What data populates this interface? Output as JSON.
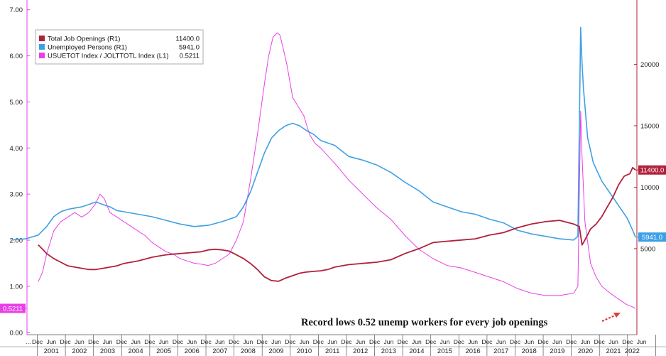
{
  "chart_data": {
    "type": "line",
    "left_axis": {
      "ticks": [
        0.0,
        1.0,
        2.0,
        3.0,
        4.0,
        5.0,
        6.0,
        7.0
      ],
      "tick_labels": [
        "0.00",
        "1.00",
        "2.00",
        "3.00",
        "4.00",
        "5.00",
        "6.00",
        "7.00"
      ],
      "ylim": [
        -0.05,
        7.15
      ],
      "color": "#e83fe8"
    },
    "right_axis": {
      "ticks": [
        5000,
        10000,
        15000,
        20000
      ],
      "tick_labels": [
        "5000",
        "10000",
        "15000",
        "20000"
      ],
      "ylim": [
        -2000,
        25000
      ],
      "color": "#b0213a"
    },
    "x_axis": {
      "xlim": [
        2000.55,
        2022.25
      ],
      "years": [
        "2001",
        "2002",
        "2003",
        "2004",
        "2005",
        "2006",
        "2007",
        "2008",
        "2009",
        "2010",
        "2011",
        "2012",
        "2013",
        "2014",
        "2015",
        "2016",
        "2017",
        "2018",
        "2019",
        "2020",
        "2021",
        "2022"
      ],
      "month_labels": [
        "Dec",
        "Jun"
      ],
      "leading_label": "..."
    },
    "series": [
      {
        "name": "Total Job Openings (R1)",
        "last_value": "11400.0",
        "axis": "right",
        "color": "#b0213a",
        "x": [
          2000.95,
          2001.0,
          2001.25,
          2001.5,
          2001.75,
          2002.0,
          2002.25,
          2002.5,
          2002.75,
          2003.0,
          2003.25,
          2003.5,
          2003.75,
          2004.0,
          2004.25,
          2004.5,
          2004.75,
          2005.0,
          2005.25,
          2005.5,
          2005.75,
          2006.0,
          2006.25,
          2006.5,
          2006.75,
          2007.0,
          2007.25,
          2007.5,
          2007.75,
          2008.0,
          2008.25,
          2008.5,
          2008.75,
          2009.0,
          2009.25,
          2009.5,
          2009.75,
          2010.0,
          2010.25,
          2010.5,
          2010.75,
          2011.0,
          2011.25,
          2011.5,
          2011.75,
          2012.0,
          2012.5,
          2013.0,
          2013.5,
          2014.0,
          2014.5,
          2015.0,
          2015.5,
          2016.0,
          2016.5,
          2017.0,
          2017.5,
          2018.0,
          2018.5,
          2019.0,
          2019.5,
          2020.0,
          2020.2,
          2020.3,
          2020.4,
          2020.6,
          2020.8,
          2021.0,
          2021.2,
          2021.4,
          2021.6,
          2021.8,
          2022.0,
          2022.1,
          2022.2
        ],
        "values": [
          5300,
          5200,
          4600,
          4200,
          3900,
          3600,
          3500,
          3400,
          3300,
          3300,
          3400,
          3500,
          3600,
          3800,
          3900,
          4000,
          4150,
          4300,
          4400,
          4500,
          4550,
          4600,
          4650,
          4700,
          4750,
          4900,
          4950,
          4900,
          4800,
          4500,
          4200,
          3800,
          3300,
          2700,
          2400,
          2350,
          2600,
          2800,
          3000,
          3100,
          3150,
          3200,
          3300,
          3500,
          3600,
          3700,
          3800,
          3900,
          4100,
          4600,
          5000,
          5500,
          5600,
          5700,
          5800,
          6100,
          6300,
          6700,
          7000,
          7200,
          7300,
          7000,
          6800,
          5300,
          5700,
          6600,
          7000,
          7600,
          8400,
          9200,
          10200,
          10900,
          11100,
          11600,
          11400
        ]
      },
      {
        "name": "Unemployed Persons (R1)",
        "last_value": "5941.0",
        "axis": "right",
        "color": "#3ea0e4",
        "x": [
          2000.0,
          2000.5,
          2000.95,
          2001.25,
          2001.5,
          2001.75,
          2002.0,
          2002.25,
          2002.5,
          2002.75,
          2003.0,
          2003.25,
          2003.5,
          2003.75,
          2004.0,
          2004.5,
          2005.0,
          2005.5,
          2006.0,
          2006.5,
          2007.0,
          2007.5,
          2008.0,
          2008.25,
          2008.5,
          2008.75,
          2009.0,
          2009.25,
          2009.5,
          2009.75,
          2010.0,
          2010.25,
          2010.5,
          2010.75,
          2011.0,
          2011.5,
          2012.0,
          2012.5,
          2013.0,
          2013.5,
          2014.0,
          2014.5,
          2015.0,
          2015.5,
          2016.0,
          2016.5,
          2017.0,
          2017.5,
          2018.0,
          2018.5,
          2019.0,
          2019.5,
          2020.0,
          2020.15,
          2020.25,
          2020.3,
          2020.35,
          2020.5,
          2020.7,
          2021.0,
          2021.3,
          2021.6,
          2021.9,
          2022.1,
          2022.2
        ],
        "values": [
          5700,
          5800,
          6100,
          6800,
          7600,
          8000,
          8200,
          8300,
          8400,
          8600,
          8800,
          8600,
          8400,
          8100,
          8000,
          7800,
          7600,
          7300,
          7000,
          6800,
          6900,
          7200,
          7600,
          8400,
          9600,
          11200,
          12800,
          14000,
          14600,
          15000,
          15200,
          15000,
          14600,
          14300,
          13800,
          13400,
          12500,
          12200,
          11800,
          11200,
          10400,
          9700,
          8800,
          8400,
          8000,
          7800,
          7400,
          7100,
          6500,
          6200,
          6000,
          5800,
          5700,
          6000,
          23000,
          20000,
          18000,
          14000,
          12000,
          10500,
          9500,
          8500,
          7500,
          6500,
          5941
        ]
      },
      {
        "name": "USUETOT Index / JOLTTOTL Index (L1)",
        "last_value": "0.5211",
        "axis": "left",
        "color": "#e83fe8",
        "x": [
          2000.95,
          2001.1,
          2001.25,
          2001.5,
          2001.75,
          2002.0,
          2002.25,
          2002.5,
          2002.75,
          2003.0,
          2003.15,
          2003.3,
          2003.5,
          2003.75,
          2004.0,
          2004.25,
          2004.5,
          2004.75,
          2005.0,
          2005.25,
          2005.5,
          2005.75,
          2006.0,
          2006.25,
          2006.5,
          2006.75,
          2007.0,
          2007.25,
          2007.5,
          2007.75,
          2008.0,
          2008.25,
          2008.5,
          2008.75,
          2009.0,
          2009.15,
          2009.3,
          2009.45,
          2009.55,
          2009.65,
          2009.8,
          2010.0,
          2010.2,
          2010.4,
          2010.6,
          2010.8,
          2011.0,
          2011.3,
          2011.6,
          2012.0,
          2012.5,
          2013.0,
          2013.5,
          2014.0,
          2014.5,
          2015.0,
          2015.5,
          2016.0,
          2016.5,
          2017.0,
          2017.5,
          2018.0,
          2018.5,
          2019.0,
          2019.5,
          2020.0,
          2020.15,
          2020.25,
          2020.3,
          2020.4,
          2020.6,
          2020.8,
          2021.0,
          2021.3,
          2021.6,
          2021.9,
          2022.1,
          2022.2
        ],
        "values": [
          1.1,
          1.3,
          1.7,
          2.2,
          2.4,
          2.5,
          2.6,
          2.5,
          2.6,
          2.8,
          3.0,
          2.9,
          2.6,
          2.5,
          2.4,
          2.3,
          2.2,
          2.1,
          1.95,
          1.85,
          1.75,
          1.7,
          1.6,
          1.55,
          1.5,
          1.48,
          1.45,
          1.5,
          1.6,
          1.7,
          2.0,
          2.4,
          3.3,
          4.3,
          5.4,
          6.0,
          6.4,
          6.5,
          6.45,
          6.2,
          5.8,
          5.1,
          4.9,
          4.7,
          4.3,
          4.1,
          4.0,
          3.8,
          3.6,
          3.3,
          3.0,
          2.7,
          2.45,
          2.1,
          1.8,
          1.6,
          1.45,
          1.4,
          1.3,
          1.2,
          1.1,
          0.95,
          0.85,
          0.8,
          0.8,
          0.85,
          1.0,
          4.8,
          3.8,
          2.4,
          1.5,
          1.2,
          1.0,
          0.85,
          0.72,
          0.6,
          0.55,
          0.5211
        ]
      }
    ],
    "annotations": [
      {
        "text": "Record lows 0.52 unemp workers for every job openings"
      }
    ],
    "grid": false,
    "legend": {
      "placement": "top-left"
    }
  }
}
